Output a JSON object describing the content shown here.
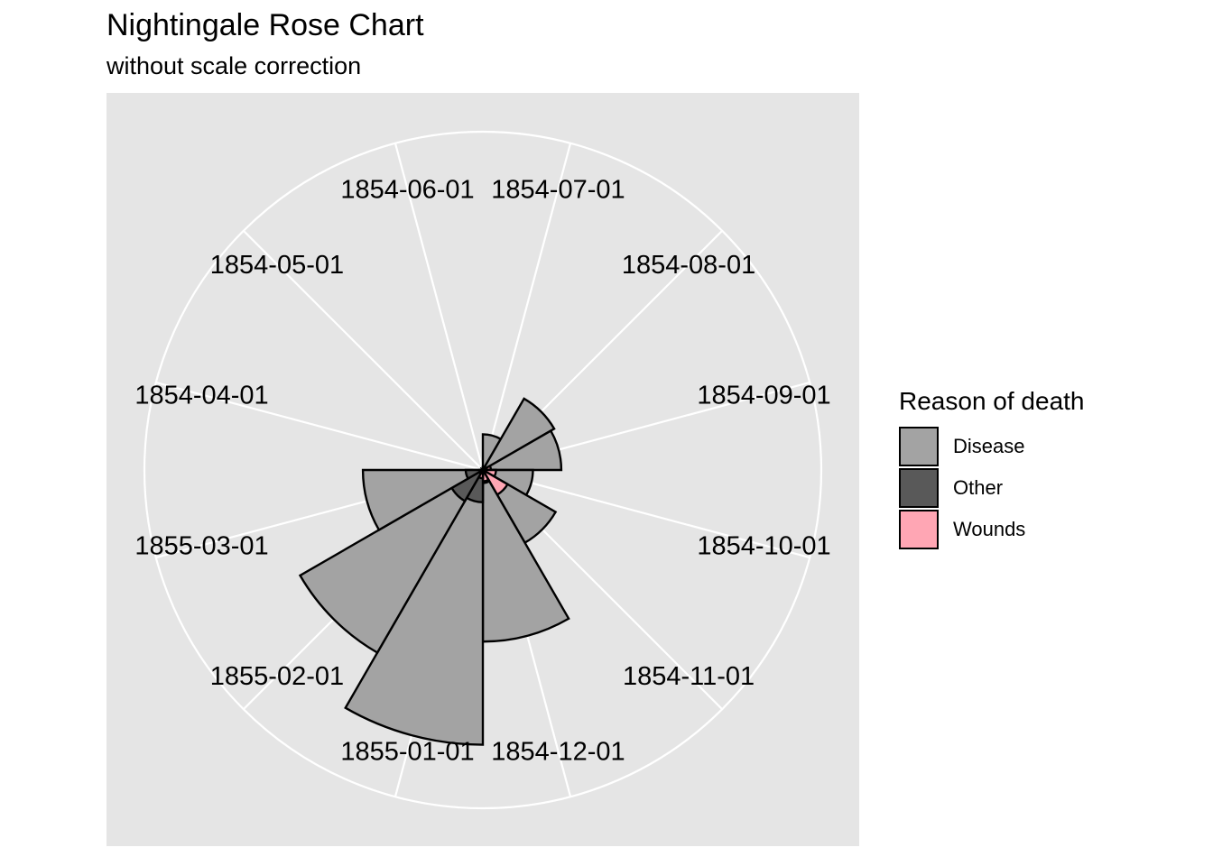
{
  "chart_data": {
    "type": "bar",
    "coord": "polar",
    "title": "Nightingale Rose Chart",
    "subtitle": "without scale correction",
    "categories": [
      "1854-04-01",
      "1854-05-01",
      "1854-06-01",
      "1854-07-01",
      "1854-08-01",
      "1854-09-01",
      "1854-10-01",
      "1854-11-01",
      "1854-12-01",
      "1855-01-01",
      "1855-02-01",
      "1855-03-01"
    ],
    "series": [
      {
        "name": "Disease",
        "values": [
          1,
          12,
          11,
          359,
          828,
          788,
          503,
          844,
          1725,
          2761,
          2120,
          1205
        ]
      },
      {
        "name": "Other",
        "values": [
          5,
          9,
          6,
          23,
          30,
          70,
          128,
          106,
          131,
          324,
          361,
          172
        ]
      },
      {
        "name": "Wounds",
        "values": [
          0,
          0,
          0,
          0,
          1,
          81,
          132,
          287,
          114,
          83,
          42,
          32
        ]
      }
    ],
    "ylim": [
      0,
      3400
    ],
    "grid": true,
    "legend": {
      "title": "Reason of death",
      "position": "right"
    },
    "colors": {
      "Disease": "#A3A3A3",
      "Other": "#595959",
      "Wounds": "#FFA6B4",
      "panel": "#E5E5E5",
      "grid": "#FFFFFF"
    }
  }
}
